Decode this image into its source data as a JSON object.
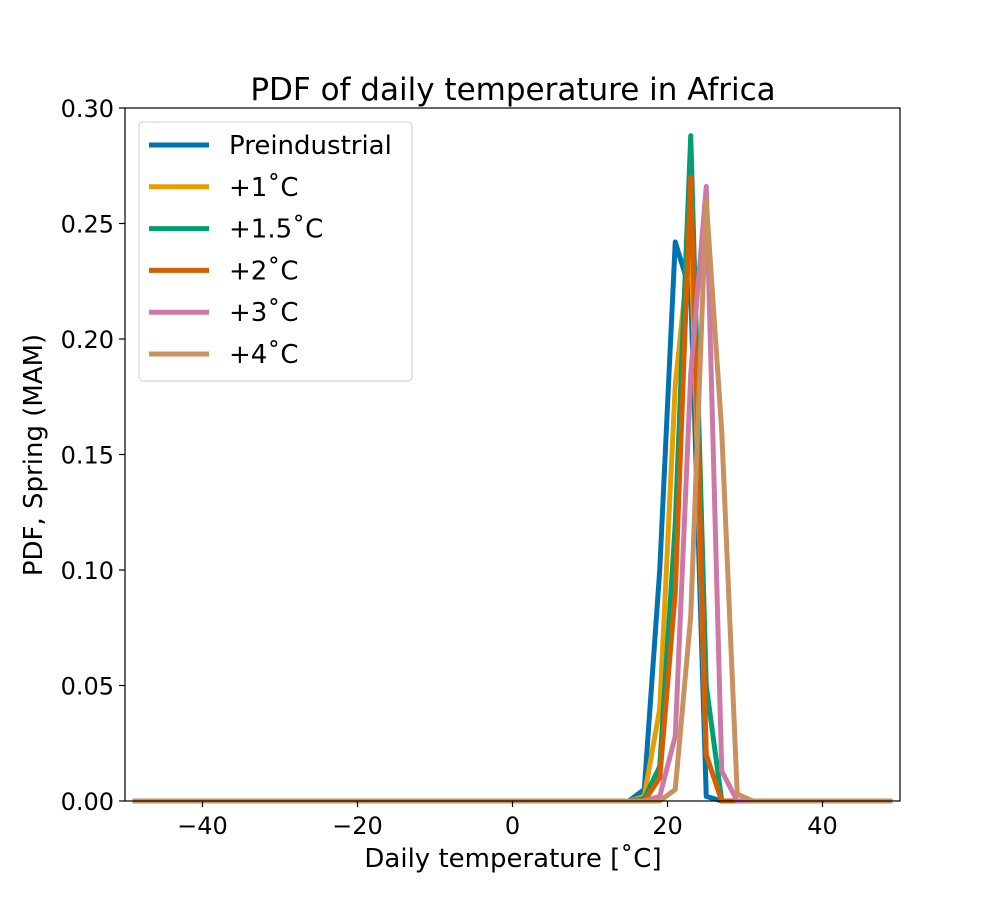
{
  "chart_data": {
    "type": "line",
    "title": "PDF of daily temperature in Africa",
    "xlabel": "Daily temperature [˚C]",
    "ylabel": "PDF, Spring (MAM)",
    "xlim": [
      -50,
      50
    ],
    "ylim": [
      0,
      0.3
    ],
    "xticks": [
      -40,
      -20,
      0,
      20,
      40
    ],
    "xtick_labels": [
      "−40",
      "−20",
      "0",
      "20",
      "40"
    ],
    "yticks": [
      0,
      0.05,
      0.1,
      0.15,
      0.2,
      0.25,
      0.3
    ],
    "ytick_labels": [
      "0.00",
      "0.05",
      "0.10",
      "0.15",
      "0.20",
      "0.25",
      "0.30"
    ],
    "grid": false,
    "legend_position": "top-left",
    "series": [
      {
        "name": "Preindustrial",
        "color": "#0072b2",
        "x": [
          -49,
          15,
          17,
          19,
          21,
          23,
          25,
          27,
          49
        ],
        "y": [
          0,
          0,
          0.005,
          0.1,
          0.242,
          0.22,
          0.002,
          0,
          0
        ]
      },
      {
        "name": "+1˚C",
        "color": "#e69f00",
        "x": [
          -49,
          15,
          17,
          19,
          21,
          23,
          25,
          27,
          49
        ],
        "y": [
          0,
          0,
          0.002,
          0.04,
          0.18,
          0.245,
          0.02,
          0,
          0
        ]
      },
      {
        "name": "+1.5˚C",
        "color": "#009e73",
        "x": [
          -49,
          15,
          17,
          19,
          21,
          23,
          25,
          27,
          49
        ],
        "y": [
          0,
          0,
          0.001,
          0.015,
          0.12,
          0.288,
          0.05,
          0,
          0
        ]
      },
      {
        "name": "+2˚C",
        "color": "#d55e00",
        "x": [
          -49,
          15,
          17,
          19,
          21,
          23,
          25,
          27,
          49
        ],
        "y": [
          0,
          0,
          0,
          0.01,
          0.09,
          0.27,
          0.02,
          0,
          0
        ]
      },
      {
        "name": "+3˚C",
        "color": "#cc79a7",
        "x": [
          -49,
          17,
          19,
          21,
          23,
          25,
          27,
          29,
          49
        ],
        "y": [
          0,
          0,
          0.002,
          0.028,
          0.185,
          0.266,
          0.013,
          0,
          0
        ]
      },
      {
        "name": "+4˚C",
        "color": "#c8915f",
        "x": [
          -49,
          19,
          21,
          23,
          25,
          27,
          29,
          31,
          49
        ],
        "y": [
          0,
          0,
          0.005,
          0.08,
          0.26,
          0.16,
          0.003,
          0,
          0
        ]
      }
    ]
  }
}
